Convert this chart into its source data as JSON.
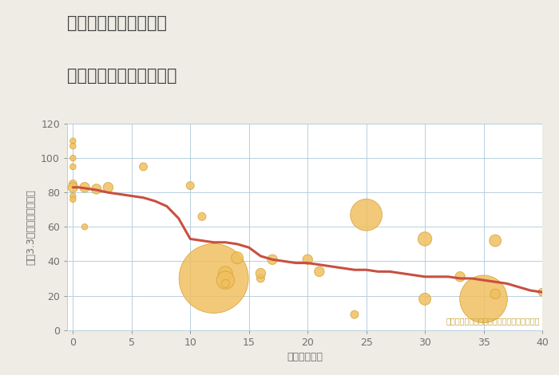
{
  "title_line1": "兵庫県姫路市吉田町の",
  "title_line2": "築年数別中古戸建て価格",
  "xlabel": "築年数（年）",
  "ylabel": "坪（3.3㎡）単価（万円）",
  "annotation": "円の大きさは、取引のあった物件面積を示す",
  "background_color": "#eeece4",
  "plot_bg_color": "#ffffff",
  "grid_color": "#b8cfe0",
  "bubble_color": "#f0c060",
  "bubble_edge_color": "#d4a030",
  "line_color": "#c85040",
  "xlim": [
    -0.5,
    40
  ],
  "ylim": [
    0,
    120
  ],
  "xticks": [
    0,
    5,
    10,
    15,
    20,
    25,
    30,
    35,
    40
  ],
  "yticks": [
    0,
    20,
    40,
    60,
    80,
    100,
    120
  ],
  "scatter_x": [
    0,
    0,
    0,
    0,
    0,
    0,
    0,
    0,
    1,
    1,
    2,
    3,
    6,
    10,
    11,
    12,
    13,
    13,
    13,
    14,
    16,
    16,
    17,
    20,
    21,
    24,
    25,
    30,
    30,
    33,
    35,
    36,
    36,
    40
  ],
  "scatter_y": [
    110,
    107,
    100,
    95,
    85,
    83,
    78,
    76,
    83,
    60,
    82,
    83,
    95,
    84,
    66,
    30,
    33,
    29,
    27,
    42,
    30,
    33,
    41,
    41,
    34,
    9,
    67,
    53,
    18,
    31,
    18,
    52,
    21,
    22
  ],
  "scatter_size": [
    3,
    3,
    3,
    3,
    4,
    5,
    3,
    3,
    5,
    3,
    5,
    5,
    4,
    4,
    4,
    35,
    7,
    9,
    4,
    6,
    4,
    5,
    5,
    5,
    5,
    4,
    16,
    7,
    6,
    5,
    24,
    6,
    5,
    4
  ],
  "line_x": [
    0,
    0.5,
    1,
    1.5,
    2,
    3,
    4,
    5,
    6,
    7,
    8,
    9,
    10,
    11,
    12,
    13,
    14,
    15,
    16,
    17,
    18,
    19,
    20,
    21,
    22,
    23,
    24,
    25,
    26,
    27,
    28,
    29,
    30,
    31,
    32,
    33,
    34,
    35,
    36,
    37,
    38,
    39,
    40
  ],
  "line_y": [
    83,
    83,
    82.5,
    82,
    81.5,
    80,
    79,
    78,
    77,
    75,
    72,
    65,
    53,
    52,
    51,
    51,
    50,
    48,
    43,
    41,
    40,
    39,
    39,
    38,
    37,
    36,
    35,
    35,
    34,
    34,
    33,
    32,
    31,
    31,
    31,
    30,
    30,
    29,
    28,
    27,
    25,
    23,
    22
  ],
  "title_color": "#404040",
  "axis_color": "#707070",
  "annotation_color": "#c8a840",
  "title_fontsize": 15,
  "label_fontsize": 9,
  "tick_fontsize": 9
}
